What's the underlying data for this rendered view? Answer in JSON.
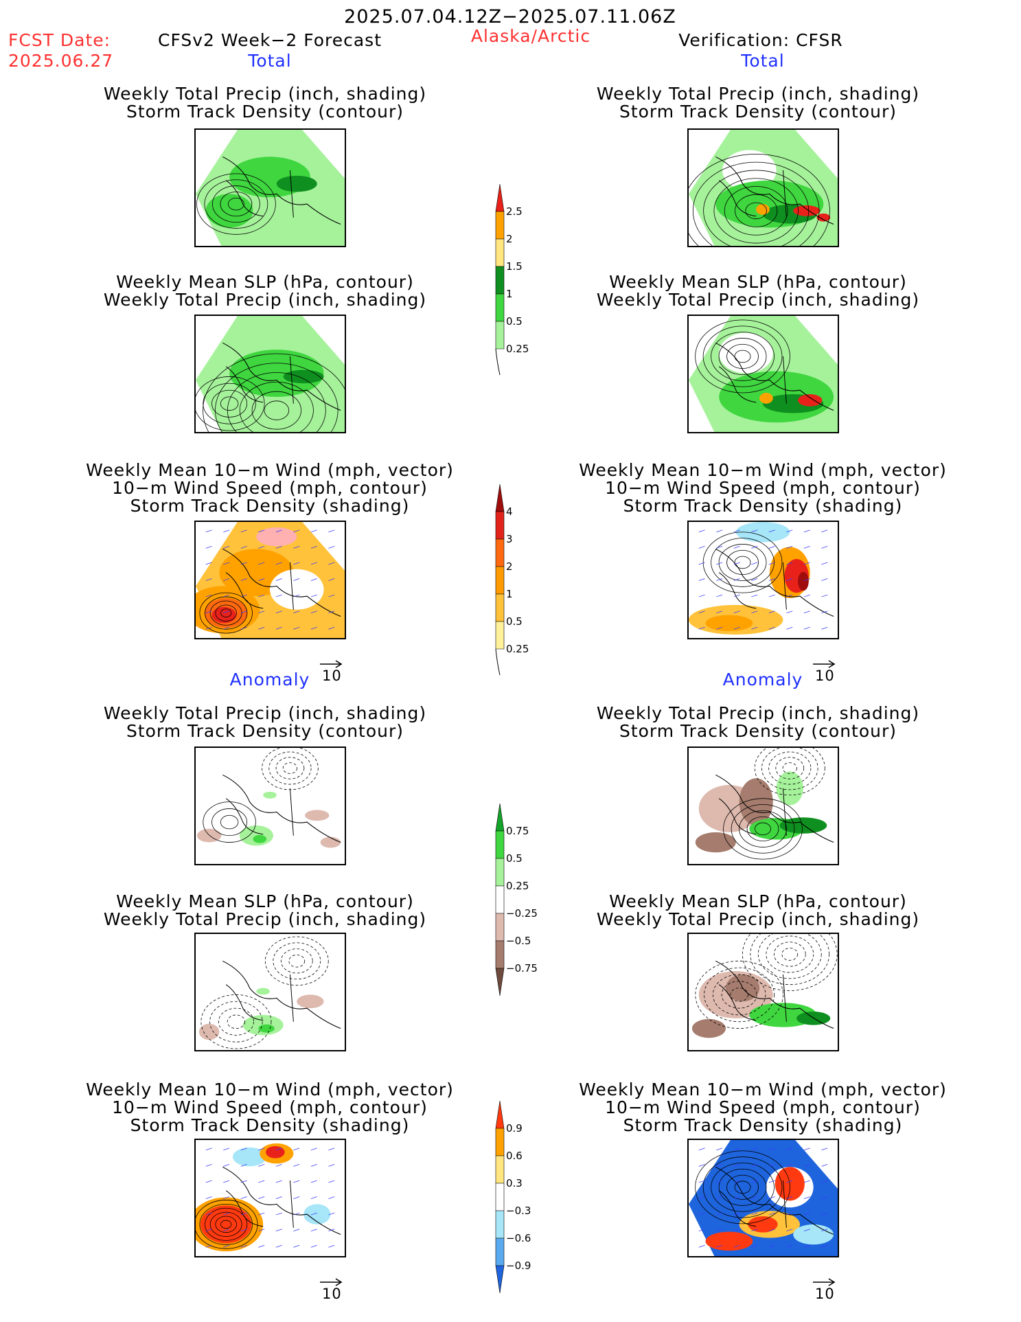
{
  "header": {
    "period": "2025.07.04.12Z−2025.07.11.06Z",
    "fcst_label": "FCST Date:",
    "fcst_date": "2025.06.27",
    "model_title": "CFSv2 Week−2 Forecast",
    "region": "Alaska/Arctic",
    "verification": "Verification: CFSR"
  },
  "sections": {
    "total": "Total",
    "anomaly": "Anomaly"
  },
  "captions": {
    "precip_storm": [
      "Weekly Total Precip (inch, shading)",
      "Storm Track Density (contour)"
    ],
    "slp_precip": [
      "Weekly Mean SLP (hPa, contour)",
      "Weekly Total Precip (inch, shading)"
    ],
    "wind_storm": [
      "Weekly Mean 10−m Wind (mph, vector)",
      "10−m Wind Speed (mph, contour)",
      "Storm Track Density (shading)"
    ]
  },
  "vector_scale_label": "10",
  "colorbars": {
    "total_precip": {
      "labels": [
        "2.5",
        "2",
        "1.5",
        "1",
        "0.5",
        "0.25"
      ],
      "colors": [
        "#e8221a",
        "#ffa200",
        "#ffe680",
        "#0f8f1f",
        "#3fd63f",
        "#a6f29b"
      ]
    },
    "storm_density": {
      "labels": [
        "4",
        "3",
        "2",
        "1",
        "0.5",
        "0.25"
      ],
      "colors": [
        "#a00d0d",
        "#e2231a",
        "#ff6a10",
        "#ff9a00",
        "#ffc23a",
        "#fff19a"
      ]
    },
    "precip_anom": {
      "labels": [
        "0.75",
        "0.5",
        "0.25",
        "−0.25",
        "−0.5",
        "−0.75"
      ],
      "colors": [
        "#16a32b",
        "#3fd63f",
        "#a6f29b",
        "#ffffff",
        "#ddb9ae",
        "#a57c6d",
        "#6d4a3c"
      ]
    },
    "storm_anom": {
      "labels": [
        "0.9",
        "0.6",
        "0.3",
        "−0.3",
        "−0.6",
        "−0.9"
      ],
      "colors": [
        "#ff3a10",
        "#ffa200",
        "#ffe680",
        "#ffffff",
        "#a6e6f8",
        "#5aaaf0",
        "#1e64dc"
      ]
    }
  },
  "map_colors": {
    "light_green": "#a6f29b",
    "green": "#3fd63f",
    "dark_green": "#0f8f1f",
    "yellow": "#ffe680",
    "orange": "#ffa200",
    "red": "#e8221a",
    "light_orange": "#ffc23a",
    "dark_red": "#a00d0d",
    "tan": "#ddb9ae",
    "brown": "#a57c6d",
    "blue": "#1e64dc",
    "light_blue": "#a6e6f8"
  }
}
